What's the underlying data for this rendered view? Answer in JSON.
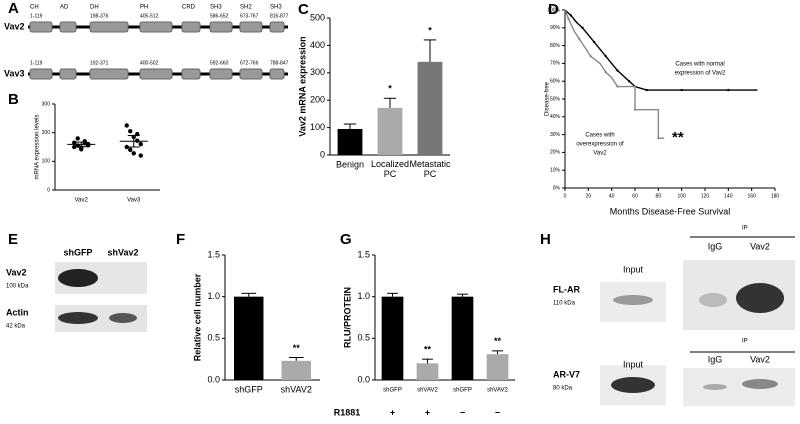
{
  "panel_labels": [
    "A",
    "B",
    "C",
    "D",
    "E",
    "F",
    "G",
    "H"
  ],
  "panel_a": {
    "domains": [
      "CH",
      "AD",
      "DH",
      "PH",
      "CRD",
      "SH3",
      "SH2",
      "SH3"
    ],
    "rows": [
      {
        "name": "Vav2",
        "ranges": [
          "1-119",
          null,
          "198-376",
          "405-512",
          null,
          "586-652",
          "673-767",
          "816-877"
        ]
      },
      {
        "name": "Vav3",
        "ranges": [
          "1-119",
          null,
          "192-371",
          "400-502",
          null,
          "592-660",
          "672-766",
          "788-847"
        ]
      }
    ]
  },
  "chart_data": [
    {
      "type": "strip",
      "categories": [
        "Vav2",
        "Vav3"
      ],
      "values": [
        [
          165,
          155,
          148,
          170,
          160,
          150,
          180,
          142,
          163,
          156
        ],
        [
          225,
          205,
          185,
          172,
          160,
          150,
          140,
          128,
          195,
          120
        ]
      ],
      "means": [
        159,
        170
      ],
      "errors": [
        8,
        20
      ],
      "ylim": [
        0,
        300
      ],
      "yticks": [
        0,
        100,
        200,
        300
      ],
      "y_label": "mRNA expression levels"
    },
    {
      "type": "bar",
      "categories": [
        "Benign",
        "Localized PC",
        "Metastatic PC"
      ],
      "values": [
        95,
        172,
        340
      ],
      "errors": [
        18,
        35,
        80
      ],
      "colors": [
        "#000000",
        "#aaaaaa",
        "#777777"
      ],
      "significance": [
        null,
        "*",
        "*"
      ],
      "ylim": [
        0,
        500
      ],
      "yticks": [
        0,
        100,
        200,
        300,
        400,
        500
      ],
      "y_label": "Vav2 mRNA expression"
    },
    {
      "type": "line",
      "series": [
        {
          "color": "#000000",
          "x": [
            0,
            5,
            10,
            15,
            20,
            25,
            30,
            35,
            40,
            45,
            50,
            55,
            60,
            70,
            80,
            100,
            120,
            140,
            165
          ],
          "values": [
            100,
            97,
            93,
            90,
            86,
            82,
            78,
            74,
            70,
            66,
            63,
            60,
            57,
            55,
            55,
            55,
            55,
            55,
            55
          ]
        },
        {
          "color": "#888888",
          "x": [
            0,
            3,
            8,
            12,
            18,
            22,
            30,
            35,
            40,
            45,
            60,
            60,
            80,
            80,
            85
          ],
          "values": [
            100,
            95,
            88,
            84,
            78,
            74,
            70,
            65,
            62,
            57,
            57,
            44,
            44,
            28,
            28
          ]
        }
      ],
      "annotations": [
        [
          "Cases with normal",
          "expression of Vav2"
        ],
        [
          "Cases with",
          "overexpression of",
          "Vav2"
        ]
      ],
      "significance": "**",
      "xlim": [
        0,
        180
      ],
      "xticks": [
        0,
        20,
        40,
        60,
        80,
        100,
        120,
        140,
        160,
        180
      ],
      "ylim": [
        0,
        100
      ],
      "yticks": [
        {
          "value": 0,
          "label": "0%"
        },
        {
          "value": 10,
          "label": "10%"
        },
        {
          "value": 20,
          "label": "20%"
        },
        {
          "value": 30,
          "label": "30%"
        },
        {
          "value": 40,
          "label": "40%"
        },
        {
          "value": 50,
          "label": "50%"
        },
        {
          "value": 60,
          "label": "60%"
        },
        {
          "value": 70,
          "label": "70%"
        },
        {
          "value": 80,
          "label": "80%"
        },
        {
          "value": 90,
          "label": "90%"
        },
        {
          "value": 100,
          "label": "100%"
        }
      ],
      "y_label": "Disease-free",
      "x_label": "Months Disease-Free Survival"
    },
    {
      "type": "bar",
      "categories": [
        "shGFP",
        "shVAV2"
      ],
      "values": [
        1.0,
        0.23
      ],
      "errors": [
        0.04,
        0.04
      ],
      "colors": [
        "#000000",
        "#aaaaaa"
      ],
      "significance": [
        null,
        "**"
      ],
      "ylim": [
        0,
        1.5
      ],
      "yticks": [
        {
          "value": 0,
          "label": "0.0"
        },
        {
          "value": 0.5,
          "label": "0.5"
        },
        {
          "value": 1,
          "label": "1.0"
        },
        {
          "value": 1.5,
          "label": "1.5"
        }
      ],
      "y_label": "Relative cell number"
    },
    {
      "type": "bar",
      "categories": [
        "shGFP",
        "shVAV2",
        "shGFP",
        "shVAV2"
      ],
      "values": [
        1.0,
        0.2,
        1.0,
        0.31
      ],
      "errors": [
        0.04,
        0.05,
        0.03,
        0.04
      ],
      "colors": [
        "#000000",
        "#aaaaaa",
        "#000000",
        "#aaaaaa"
      ],
      "significance": [
        null,
        "**",
        null,
        "**"
      ],
      "treatment": {
        "name": "R1881",
        "values": [
          "+",
          "+",
          "−",
          "−"
        ]
      },
      "ylim": [
        0,
        1.5
      ],
      "yticks": [
        {
          "value": 0,
          "label": "0.0"
        },
        {
          "value": 0.5,
          "label": "0.5"
        },
        {
          "value": 1,
          "label": "1.0"
        },
        {
          "value": 1.5,
          "label": "1.5"
        }
      ],
      "y_label": "RLU/PROTEIN"
    }
  ],
  "panel_e": {
    "lanes": [
      "shGFP",
      "shVav2"
    ],
    "bands": [
      {
        "name": "Vav2",
        "size": "100 kDa"
      },
      {
        "name": "Actin",
        "size": "42 kDa"
      }
    ]
  },
  "panel_h": {
    "blots": [
      {
        "name": "FL-AR",
        "size": "110 kDa",
        "input": "Input",
        "ip": "IP",
        "lanes": [
          "IgG",
          "Vav2"
        ]
      },
      {
        "name": "AR-V7",
        "size": "80 kDa",
        "input": "Input",
        "ip": "IP",
        "lanes": [
          "IgG",
          "Vav2"
        ]
      }
    ]
  }
}
